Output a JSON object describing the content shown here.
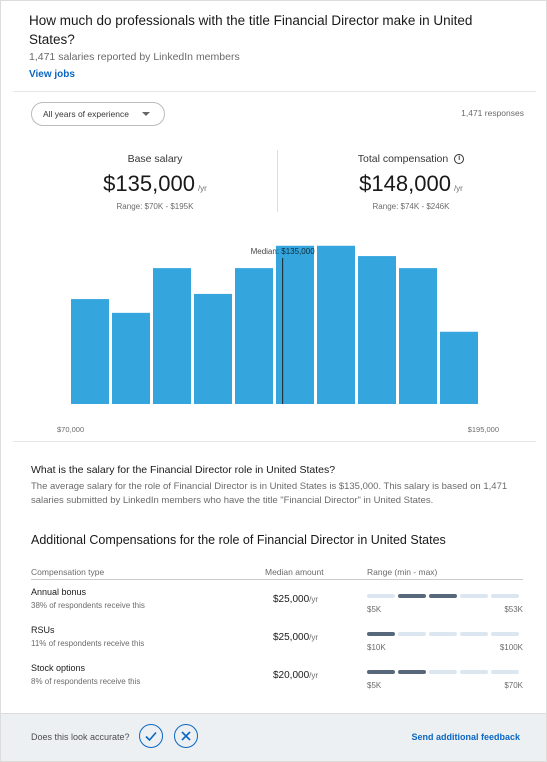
{
  "header": {
    "title": "How much do professionals with the title Financial Director make in United States?",
    "subtitle": "1,471 salaries reported by LinkedIn members",
    "view_jobs": "View jobs"
  },
  "filter": {
    "experience_label": "All years of experience",
    "responses": "1,471 responses"
  },
  "base_salary": {
    "label": "Base salary",
    "amount": "$135,000",
    "per": "/yr",
    "range": "Range: $70K - $195K"
  },
  "total_compensation": {
    "label": "Total compensation",
    "amount": "$148,000",
    "per": "/yr",
    "range": "Range: $74K - $246K"
  },
  "chart_data": {
    "type": "bar",
    "title": "",
    "xlabel": "",
    "ylabel": "",
    "x_min_label": "$70,000",
    "x_max_label": "$195,000",
    "median_label": "Median: $135,000",
    "median_fraction": 0.52,
    "bar_color": "#35a5de",
    "values": [
      0.61,
      0.53,
      0.79,
      0.64,
      0.79,
      0.92,
      0.92,
      0.86,
      0.79,
      0.42
    ]
  },
  "about": {
    "question": "What is the salary for the Financial Director role in United States?",
    "answer": "The average salary for the role of Financial Director is in United States is $135,000. This salary is based on 1,471 salaries submitted by LinkedIn members who have the title \"Financial Director\" in United States."
  },
  "additional": {
    "heading": "Additional Compensations for the role of Financial Director in United States",
    "col_type": "Compensation type",
    "col_median": "Median amount",
    "col_range": "Range (min - max)",
    "rows": [
      {
        "name": "Annual bonus",
        "respondents": "38% of respondents receive this",
        "median": "$25,000",
        "per": "/yr",
        "min": "$5K",
        "max": "$53K",
        "filled": [
          1,
          2
        ]
      },
      {
        "name": "RSUs",
        "respondents": "11% of respondents receive this",
        "median": "$25,000",
        "per": "/yr",
        "min": "$10K",
        "max": "$100K",
        "filled": [
          0
        ]
      },
      {
        "name": "Stock options",
        "respondents": "8% of respondents receive this",
        "median": "$20,000",
        "per": "/yr",
        "min": "$5K",
        "max": "$70K",
        "filled": [
          0,
          1
        ]
      }
    ]
  },
  "footer": {
    "accurate_label": "Does this look accurate?",
    "send_feedback": "Send additional feedback"
  },
  "colors": {
    "accent": "#0a66c2",
    "bar": "#35a5de",
    "segment_on": "#56687a",
    "segment_off": "#dce6f1"
  }
}
